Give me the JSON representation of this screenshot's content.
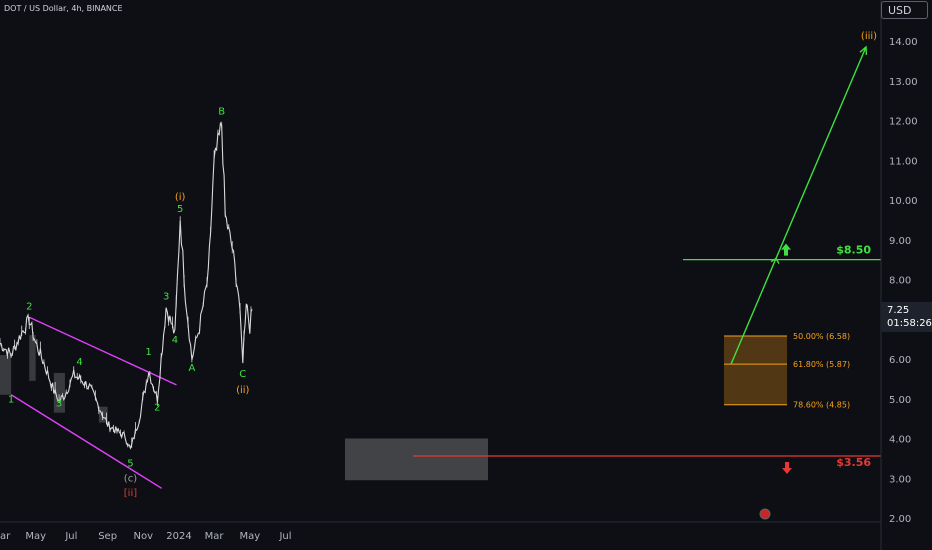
{
  "header": {
    "title": "DOT / US Dollar, 4h, BINANCE",
    "currency": "USD"
  },
  "price_tag": {
    "price": "7.25",
    "countdown": "01:58:26"
  },
  "colors": {
    "background": "#0d0f14",
    "candles": "#d9d9d9",
    "wave_green": "#3fe03f",
    "wave_orange": "#f7a21b",
    "target_green": "#3fe03f",
    "danger_red": "#e53935",
    "channel_magenta": "#e040fb",
    "fib_zone": "#8a5a14"
  },
  "chart_data": {
    "type": "line",
    "title": "DOT / US Dollar, 4h, BINANCE",
    "y_axis": {
      "ticks": [
        "14.00",
        "13.00",
        "12.00",
        "11.00",
        "10.00",
        "9.00",
        "8.00",
        "7.00",
        "6.00",
        "5.00",
        "4.00",
        "3.00",
        "2.00"
      ],
      "ylim": [
        2.0,
        14.2
      ]
    },
    "x_axis": {
      "ticks": [
        "ar",
        "May",
        "Jul",
        "Sep",
        "Nov",
        "2024",
        "Mar",
        "May",
        "Jul"
      ]
    },
    "series": [
      {
        "x": [
          "2023-03-01",
          "2023-03-20",
          "2023-04-05",
          "2023-04-20",
          "2023-05-01",
          "2023-05-15",
          "2023-06-01",
          "2023-06-10",
          "2023-06-20",
          "2023-07-05",
          "2023-07-15",
          "2023-08-01",
          "2023-08-17",
          "2023-09-01",
          "2023-09-15",
          "2023-10-01",
          "2023-10-10",
          "2023-10-25",
          "2023-11-10",
          "2023-11-25",
          "2023-12-10",
          "2023-12-25",
          "2024-01-03",
          "2024-01-12",
          "2024-01-23",
          "2024-02-05",
          "2024-02-20",
          "2024-03-01",
          "2024-03-14",
          "2024-03-20",
          "2024-04-01",
          "2024-04-12",
          "2024-04-19",
          "2024-04-25",
          "2024-05-01",
          "2024-05-05"
        ],
        "values": [
          6.4,
          6.1,
          6.6,
          7.0,
          6.4,
          5.9,
          5.2,
          4.95,
          5.1,
          5.6,
          5.5,
          5.3,
          4.8,
          4.35,
          4.2,
          4.05,
          3.72,
          4.5,
          5.7,
          5.0,
          7.3,
          6.6,
          9.55,
          7.6,
          6.0,
          6.8,
          8.1,
          10.9,
          11.9,
          9.6,
          8.8,
          7.6,
          6.0,
          7.5,
          6.8,
          7.25
        ]
      }
    ],
    "wave_labels": [
      {
        "text": "1",
        "x": "2023-03-20",
        "y": 4.9,
        "color": "green"
      },
      {
        "text": "2",
        "x": "2023-04-20",
        "y": 7.25,
        "color": "green"
      },
      {
        "text": "3",
        "x": "2023-06-10",
        "y": 4.8,
        "color": "green"
      },
      {
        "text": "4",
        "x": "2023-07-15",
        "y": 5.85,
        "color": "green"
      },
      {
        "text": "5",
        "x": "2023-10-10",
        "y": 3.3,
        "color": "green"
      },
      {
        "text": "(c)",
        "x": "2023-10-10",
        "y": 2.92,
        "color": "grey"
      },
      {
        "text": "[ii]",
        "x": "2023-10-10",
        "y": 2.55,
        "color": "red"
      },
      {
        "text": "1",
        "x": "2023-11-10",
        "y": 6.1,
        "color": "green"
      },
      {
        "text": "2",
        "x": "2023-11-25",
        "y": 4.7,
        "color": "green"
      },
      {
        "text": "3",
        "x": "2023-12-10",
        "y": 7.5,
        "color": "green"
      },
      {
        "text": "4",
        "x": "2023-12-25",
        "y": 6.4,
        "color": "green"
      },
      {
        "text": "(i)",
        "x": "2024-01-03",
        "y": 10.0,
        "color": "orange"
      },
      {
        "text": "5",
        "x": "2024-01-03",
        "y": 9.7,
        "color": "green"
      },
      {
        "text": "A",
        "x": "2024-01-23",
        "y": 5.7,
        "color": "green"
      },
      {
        "text": "B",
        "x": "2024-03-14",
        "y": 12.15,
        "color": "green"
      },
      {
        "text": "C",
        "x": "2024-04-19",
        "y": 5.55,
        "color": "green"
      },
      {
        "text": "(ii)",
        "x": "2024-04-19",
        "y": 5.15,
        "color": "orange"
      },
      {
        "text": "(iii)",
        "x": "2024-07-01",
        "y": 14.05,
        "color": "orange"
      }
    ],
    "fib_levels": [
      {
        "label": "50.00% (6.58)",
        "value": 6.58
      },
      {
        "label": "61.80% (5.87)",
        "value": 5.87
      },
      {
        "label": "78.60% (4.85)",
        "value": 4.85
      }
    ],
    "targets": [
      {
        "label": "$8.50",
        "value": 8.5,
        "color": "green"
      },
      {
        "label": "$3.56",
        "value": 3.56,
        "color": "red"
      }
    ],
    "projection": {
      "from": {
        "x": "2024-04-19",
        "y": 5.87
      },
      "to": {
        "x": "2024-07-01",
        "y": 13.85
      }
    },
    "channel": {
      "upper": [
        {
          "x": "2023-04-20",
          "y": 7.05
        },
        {
          "x": "2023-10-10",
          "y": 5.55
        }
      ],
      "lower": [
        {
          "x": "2023-03-20",
          "y": 5.1
        },
        {
          "x": "2023-09-25",
          "y": 3.15
        }
      ]
    },
    "grid": false,
    "legend": "none"
  }
}
